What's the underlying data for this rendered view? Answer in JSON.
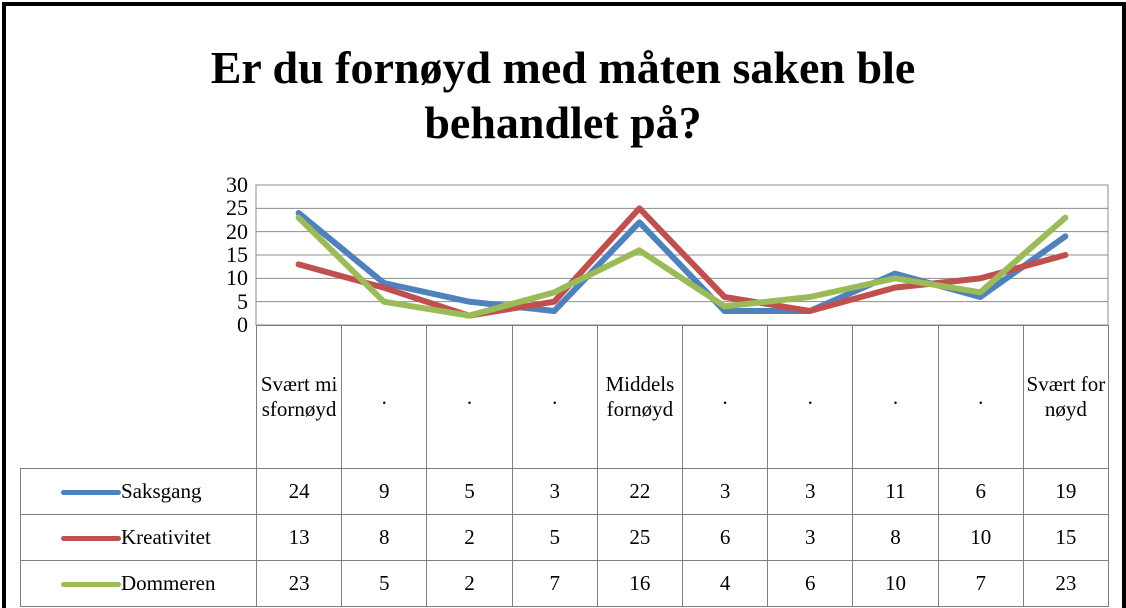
{
  "chart_data": {
    "type": "line",
    "title": "Er du fornøyd med måten saken ble behandlet på?",
    "categories": [
      "Svært misfornøyd",
      ".",
      ".",
      ".",
      "Middels fornøyd",
      ".",
      ".",
      ".",
      ".",
      "Svært fornøyd"
    ],
    "series": [
      {
        "name": "Saksgang",
        "color": "#4f81bd",
        "values": [
          24,
          9,
          5,
          3,
          22,
          3,
          3,
          11,
          6,
          19
        ]
      },
      {
        "name": "Kreativitet",
        "color": "#c0504d",
        "values": [
          13,
          8,
          2,
          5,
          25,
          6,
          3,
          8,
          10,
          15
        ]
      },
      {
        "name": "Dommeren",
        "color": "#9bbb59",
        "values": [
          23,
          5,
          2,
          7,
          16,
          4,
          6,
          10,
          7,
          23
        ]
      }
    ],
    "ylim": [
      0,
      30
    ],
    "yticks": [
      0,
      5,
      10,
      15,
      20,
      25,
      30
    ],
    "grid": true
  }
}
